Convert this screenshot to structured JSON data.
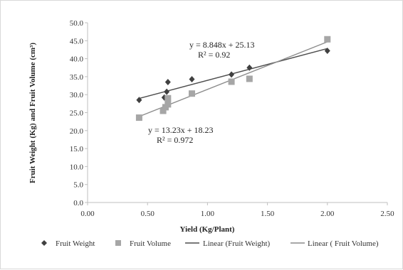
{
  "chart_data": {
    "type": "scatter",
    "xlabel": "Yield (Kg/Plant)",
    "ylabel": "Fruit Weight (Kg) and Fruit Volume (cm³)",
    "xlim": [
      0,
      2.5
    ],
    "ylim": [
      0,
      50
    ],
    "x_ticks": [
      "0.00",
      "0.50",
      "1.00",
      "1.50",
      "2.00",
      "2.50"
    ],
    "y_ticks": [
      "0.0",
      "5.0",
      "10.0",
      "15.0",
      "20.0",
      "25.0",
      "30.0",
      "35.0",
      "40.0",
      "45.0",
      "50.0"
    ],
    "series": [
      {
        "name": "Fruit Weight",
        "marker": "diamond",
        "color": "#404040",
        "x": [
          0.43,
          0.64,
          0.66,
          0.67,
          0.67,
          0.87,
          1.2,
          1.35,
          2.0
        ],
        "y": [
          28.5,
          29.2,
          30.8,
          28.8,
          33.5,
          34.3,
          35.6,
          37.5,
          42.2
        ]
      },
      {
        "name": "Fruit Volume",
        "marker": "square",
        "color": "#a6a6a6",
        "x": [
          0.43,
          0.63,
          0.65,
          0.67,
          0.67,
          0.87,
          1.2,
          1.35,
          2.0
        ],
        "y": [
          23.6,
          25.5,
          26.5,
          27.3,
          29.0,
          30.3,
          33.6,
          34.4,
          45.4
        ]
      }
    ],
    "trendlines": [
      {
        "name": "Linear (Fruit Weight)",
        "of": "Fruit Weight",
        "slope": 8.848,
        "intercept": 25.13,
        "color": "#4d4d4d",
        "x_range": [
          0.43,
          2.0
        ],
        "equation": "y = 8.848x + 25.13",
        "r2": "R² = 0.92"
      },
      {
        "name": "Linear ( Fruit Volume)",
        "of": "Fruit Volume",
        "slope": 13.23,
        "intercept": 18.23,
        "color": "#8c8c8c",
        "x_range": [
          0.43,
          2.0
        ],
        "equation": "y = 13.23x + 18.23",
        "r2": "R² = 0.972"
      }
    ],
    "legend_position": "bottom",
    "grid": false
  }
}
